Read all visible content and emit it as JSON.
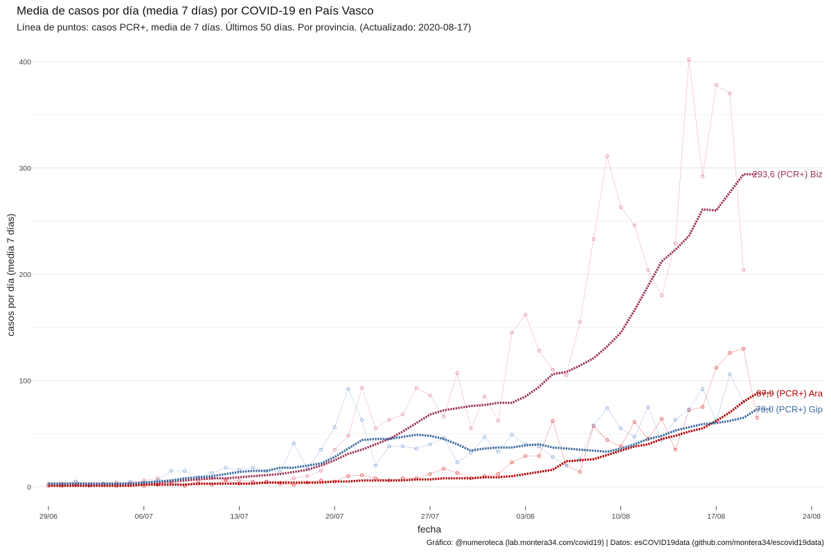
{
  "chart_data": {
    "type": "line",
    "title": "Media de casos por día (media 7 días) por COVID-19 en País Vasco",
    "subtitle": "Línea de puntos: casos PCR+, media de 7 días. Últimos 50 días. Por provincia. (Actualizado: 2020-08-17)",
    "caption": "Gráfico: @numeroteca (lab.montera34.com/covid19) | Datos: esCOVID19data (github.com/montera34/escovid19data)",
    "xlabel": "fecha",
    "ylabel": "casos por día (media 7 días)",
    "xlim": [
      "2020-06-29",
      "2020-08-24"
    ],
    "ylim": [
      -15,
      415
    ],
    "x_ticks": [
      {
        "date": "2020-06-29",
        "label": "29/06"
      },
      {
        "date": "2020-07-06",
        "label": "06/07"
      },
      {
        "date": "2020-07-13",
        "label": "13/07"
      },
      {
        "date": "2020-07-20",
        "label": "20/07"
      },
      {
        "date": "2020-07-27",
        "label": "27/07"
      },
      {
        "date": "2020-08-03",
        "label": "03/08"
      },
      {
        "date": "2020-08-10",
        "label": "10/08"
      },
      {
        "date": "2020-08-17",
        "label": "17/08"
      },
      {
        "date": "2020-08-24",
        "label": "24/08"
      }
    ],
    "y_ticks": [
      0,
      100,
      200,
      300,
      400
    ],
    "grid": true,
    "x_start": "2020-06-29",
    "series": [
      {
        "name": "Biz",
        "end_label": "293,6 (PCR+) Biz",
        "color": "#9c3457",
        "point_color": "#e07a8e",
        "daily": [
          2,
          3,
          5,
          2,
          3,
          4,
          3,
          6,
          8,
          3,
          1,
          6,
          8,
          7,
          6,
          5,
          4,
          4,
          8,
          10,
          15,
          35,
          48,
          93,
          55,
          63,
          68,
          93,
          86,
          66,
          107,
          55,
          85,
          62,
          145,
          162,
          128,
          110,
          105,
          155,
          233,
          311,
          263,
          246,
          204,
          180,
          229,
          402,
          292,
          378,
          370,
          204
        ],
        "avg": [
          3,
          3,
          3,
          3,
          3,
          3,
          3,
          4,
          4,
          5,
          6,
          7,
          8,
          8,
          9,
          10,
          11,
          12,
          14,
          16,
          20,
          25,
          31,
          35,
          40,
          45,
          52,
          60,
          68,
          72,
          74,
          76,
          77,
          79,
          79,
          85,
          94,
          106,
          108,
          114,
          121,
          132,
          145,
          166,
          189,
          212,
          223,
          236,
          261,
          260,
          277,
          294,
          294
        ]
      },
      {
        "name": "Ara",
        "end_label": "87,9 (PCR+) Ara",
        "color": "#b00000",
        "point_color": "#e03030",
        "daily": [
          1,
          1,
          2,
          1,
          2,
          1,
          3,
          1,
          2,
          5,
          1,
          3,
          2,
          6,
          3,
          4,
          5,
          3,
          2,
          4,
          6,
          5,
          10,
          11,
          8,
          6,
          8,
          8,
          12,
          17,
          13,
          8,
          10,
          12,
          23,
          29,
          29,
          62,
          20,
          14,
          57,
          44,
          38,
          61,
          45,
          64,
          35,
          72,
          75,
          112,
          126,
          130,
          65
        ],
        "avg": [
          1,
          1,
          1,
          1,
          1,
          1,
          1,
          2,
          2,
          2,
          2,
          3,
          3,
          3,
          3,
          3,
          4,
          4,
          4,
          4,
          4,
          5,
          5,
          6,
          6,
          6,
          6,
          7,
          7,
          8,
          8,
          8,
          9,
          9,
          10,
          12,
          14,
          16,
          24,
          25,
          26,
          30,
          34,
          38,
          40,
          45,
          48,
          52,
          55,
          62,
          70,
          80,
          88,
          88
        ]
      },
      {
        "name": "Gip",
        "end_label": "73,0 (PCR+) Gip",
        "color": "#3d6a9e",
        "point_color": "#7a9fd6",
        "daily": [
          3,
          2,
          5,
          1,
          3,
          2,
          5,
          4,
          6,
          15,
          15,
          9,
          13,
          18,
          16,
          18,
          15,
          14,
          41,
          17,
          35,
          56,
          92,
          63,
          20,
          38,
          38,
          36,
          40,
          46,
          23,
          32,
          47,
          33,
          49,
          40,
          38,
          28,
          20,
          26,
          58,
          74,
          55,
          47,
          75,
          44,
          63,
          73,
          92,
          62,
          106,
          80
        ],
        "avg": [
          3,
          3,
          3,
          3,
          3,
          3,
          3,
          4,
          5,
          6,
          8,
          9,
          10,
          12,
          14,
          15,
          15,
          18,
          18,
          20,
          22,
          28,
          36,
          44,
          45,
          45,
          47,
          49,
          48,
          45,
          40,
          34,
          36,
          37,
          37,
          39,
          40,
          37,
          36,
          35,
          34,
          33,
          36,
          40,
          45,
          48,
          53,
          56,
          59,
          60,
          62,
          65,
          73,
          73
        ]
      }
    ]
  }
}
